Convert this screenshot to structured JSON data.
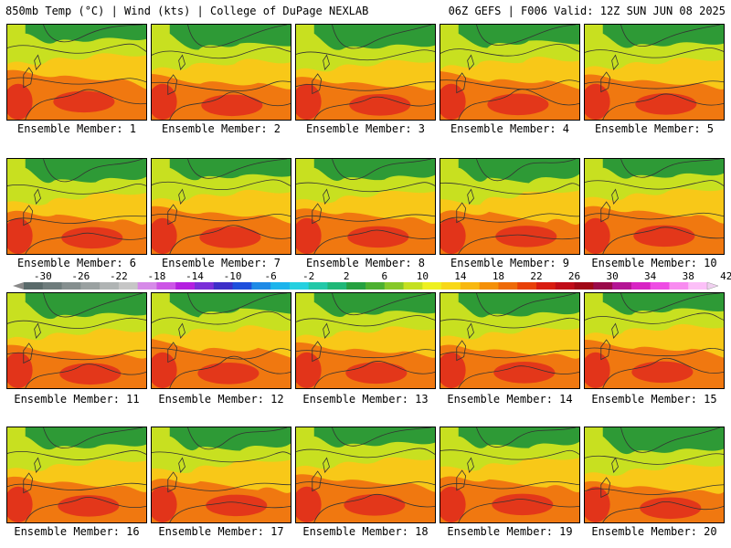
{
  "header": {
    "left": "850mb Temp (°C) | Wind (kts) | College of DuPage NEXLAB",
    "right": "06Z GEFS | F006 Valid: 12Z SUN JUN 08 2025"
  },
  "member_prefix": "Ensemble Member: ",
  "members": [
    {
      "label": "Ensemble Member: 1"
    },
    {
      "label": "Ensemble Member: 2"
    },
    {
      "label": "Ensemble Member: 3"
    },
    {
      "label": "Ensemble Member: 4"
    },
    {
      "label": "Ensemble Member: 5"
    },
    {
      "label": "Ensemble Member: 6"
    },
    {
      "label": "Ensemble Member: 7"
    },
    {
      "label": "Ensemble Member: 8"
    },
    {
      "label": "Ensemble Member: 9"
    },
    {
      "label": "Ensemble Member: 10"
    },
    {
      "label": "Ensemble Member: 11"
    },
    {
      "label": "Ensemble Member: 12"
    },
    {
      "label": "Ensemble Member: 13"
    },
    {
      "label": "Ensemble Member: 14"
    },
    {
      "label": "Ensemble Member: 15"
    },
    {
      "label": "Ensemble Member: 16"
    },
    {
      "label": "Ensemble Member: 17"
    },
    {
      "label": "Ensemble Member: 18"
    },
    {
      "label": "Ensemble Member: 19"
    },
    {
      "label": "Ensemble Member: 20"
    }
  ],
  "colorbar": {
    "tick_labels": [
      "-30",
      "-26",
      "-22",
      "-18",
      "-14",
      "-10",
      "-6",
      "-2",
      "2",
      "6",
      "10",
      "14",
      "18",
      "22",
      "26",
      "30",
      "34",
      "38",
      "42"
    ],
    "colors": [
      "#5a6a6a",
      "#6e7c7c",
      "#858f8f",
      "#9aa1a1",
      "#b0b4b4",
      "#c6c6c6",
      "#d68ae8",
      "#cc55e6",
      "#b41fe0",
      "#7a2fd8",
      "#3d2fc8",
      "#1e4fdc",
      "#1e8ae6",
      "#1cb4ec",
      "#25d0e0",
      "#22c8a8",
      "#1fb878",
      "#26a040",
      "#4cb030",
      "#86c828",
      "#c4e020",
      "#eef020",
      "#f8d818",
      "#f8b810",
      "#f49008",
      "#ee6a08",
      "#e84008",
      "#d81c10",
      "#c00c18",
      "#a00816",
      "#9a0a4a",
      "#b41494",
      "#d824c4",
      "#ee4ce4",
      "#f88cf0",
      "#fcc0f8"
    ]
  },
  "colors": {
    "cool": "#2e9a36",
    "mild": "#c8e020",
    "warm": "#f8c818",
    "hot": "#f07810",
    "very_hot": "#e02c1c",
    "contour": "#333333"
  }
}
